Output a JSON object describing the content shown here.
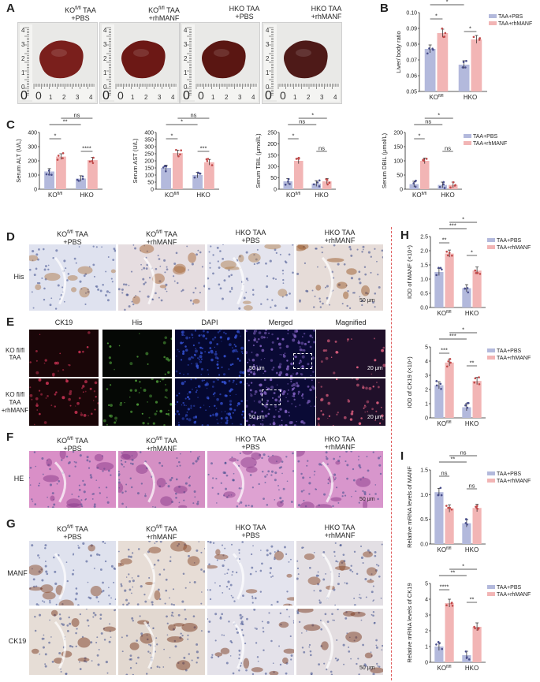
{
  "panels": {
    "A": "A",
    "B": "B",
    "C": "C",
    "D": "D",
    "E": "E",
    "F": "F",
    "G": "G",
    "H": "H",
    "I": "I"
  },
  "groups": [
    {
      "line1_pre": "KO",
      "line1_sup": "fl/fl",
      "line1_post": " TAA",
      "line2": "+PBS"
    },
    {
      "line1_pre": "KO",
      "line1_sup": "fl/fl",
      "line1_post": " TAA",
      "line2": "+rhMANF"
    },
    {
      "line1_pre": "HKO TAA",
      "line1_sup": "",
      "line1_post": "",
      "line2": "+PBS"
    },
    {
      "line1_pre": "HKO TAA",
      "line1_sup": "",
      "line1_post": "",
      "line2": "+rhMANF"
    }
  ],
  "panelA_groups": [
    {
      "line1_pre": "KO",
      "line1_sup": "fl/fl",
      "line1_post": " TAA",
      "line2": "+PBS"
    },
    {
      "line1_pre": "KO",
      "line1_sup": "fl/fl",
      "line1_post": " TAA",
      "line2": "+rhMANF"
    },
    {
      "line1_pre": "HKO TAA",
      "line1_sup": "",
      "line1_post": "",
      "line2": "+PBS"
    },
    {
      "line1_pre": "HKO TAA",
      "line1_sup": "",
      "line1_post": "",
      "line2": "+rhMANF"
    }
  ],
  "ruler_numbers": [
    "0",
    "1",
    "2",
    "3",
    "4"
  ],
  "ruler_v_numbers": [
    "4",
    "3",
    "2",
    "1",
    "0"
  ],
  "panelD": {
    "row_label": "His",
    "scale": "50 μm"
  },
  "panelE": {
    "col_labels": [
      "CK19",
      "His",
      "DAPI",
      "Merged",
      "Magnified"
    ],
    "row1_label": "KO fl/fl TAA",
    "row2_label_a": "KO fl/fl TAA",
    "row2_label_b": "+rhMANF",
    "scale_merged": "50 μm",
    "scale_magnified": "20 μm"
  },
  "panelF": {
    "row_label": "HE",
    "scale": "50 μm"
  },
  "panelG": {
    "row_labels": [
      "MANF",
      "CK19"
    ],
    "scale": "50 μm"
  },
  "legend": {
    "pbs": "TAA+PBS",
    "rh": "TAA+rhMANF"
  },
  "colors": {
    "pbs": "#b3b9dc",
    "rh": "#f2b5b5",
    "pbs_dot": "#4a4f8c",
    "rh_dot": "#c24a4a",
    "divider": "#e06060"
  },
  "chart_data": [
    {
      "id": "B",
      "type": "bar",
      "ylabel": "Liver/ body ratio",
      "categories": [
        "KO fl/fl",
        "HKO"
      ],
      "ylim": [
        0.05,
        0.1
      ],
      "yticks": [
        "0.05",
        "0.06",
        "0.07",
        "0.08",
        "0.09",
        "0.10"
      ],
      "series": [
        {
          "name": "TAA+PBS",
          "values": [
            0.077,
            0.067
          ]
        },
        {
          "name": "TAA+rhMANF",
          "values": [
            0.087,
            0.083
          ]
        }
      ],
      "sig": [
        "*",
        "*",
        "ns",
        "*"
      ]
    },
    {
      "id": "C1",
      "type": "bar",
      "ylabel": "Serum ALT (U/L)",
      "categories": [
        "KO fl/fl",
        "HKO"
      ],
      "ylim": [
        0,
        400
      ],
      "yticks": [
        "0",
        "100",
        "200",
        "300",
        "400"
      ],
      "series": [
        {
          "name": "TAA+PBS",
          "values": [
            125,
            75
          ]
        },
        {
          "name": "TAA+rhMANF",
          "values": [
            230,
            205
          ]
        }
      ],
      "sig": [
        "*",
        "**",
        "ns",
        "****"
      ]
    },
    {
      "id": "C2",
      "type": "bar",
      "ylabel": "Serum AST (U/L)",
      "categories": [
        "KO fl/fl",
        "HKO"
      ],
      "ylim": [
        0,
        400
      ],
      "yticks": [
        "0",
        "50",
        "100",
        "150",
        "200",
        "250",
        "300",
        "350",
        "400"
      ],
      "series": [
        {
          "name": "TAA+PBS",
          "values": [
            150,
            100
          ]
        },
        {
          "name": "TAA+rhMANF",
          "values": [
            255,
            190
          ]
        }
      ],
      "sig": [
        "*",
        "*",
        "ns",
        "***"
      ]
    },
    {
      "id": "C3",
      "type": "bar",
      "ylabel": "Serum TBIL (μmol/L)",
      "categories": [
        "KO fl/fl",
        "HKO"
      ],
      "ylim": [
        0,
        250
      ],
      "yticks": [
        "0",
        "50",
        "100",
        "150",
        "200",
        "250"
      ],
      "series": [
        {
          "name": "TAA+PBS",
          "values": [
            35,
            25
          ]
        },
        {
          "name": "TAA+rhMANF",
          "values": [
            125,
            35
          ]
        }
      ],
      "sig": [
        "*",
        "ns",
        "*",
        "ns"
      ]
    },
    {
      "id": "C4",
      "type": "bar",
      "ylabel": "Serum DBIL (μmol/L)",
      "categories": [
        "KO fl/fl",
        "HKO"
      ],
      "ylim": [
        0,
        200
      ],
      "yticks": [
        "0",
        "50",
        "100",
        "150",
        "200"
      ],
      "series": [
        {
          "name": "TAA+PBS",
          "values": [
            18,
            15
          ]
        },
        {
          "name": "TAA+rhMANF",
          "values": [
            100,
            15
          ]
        }
      ],
      "sig": [
        "*",
        "ns",
        "*",
        "ns"
      ]
    },
    {
      "id": "H1",
      "type": "bar",
      "ylabel": "IOD of MANF (×10⁴)",
      "categories": [
        "KO fl/fl",
        "HKO"
      ],
      "ylim": [
        0,
        2.5
      ],
      "yticks": [
        "0.0",
        "0.5",
        "1.0",
        "1.5",
        "2.0",
        "2.5"
      ],
      "series": [
        {
          "name": "TAA+PBS",
          "values": [
            1.25,
            0.68
          ]
        },
        {
          "name": "TAA+rhMANF",
          "values": [
            1.9,
            1.3
          ]
        }
      ],
      "sig": [
        "**",
        "***",
        "*",
        "*"
      ]
    },
    {
      "id": "H2",
      "type": "bar",
      "ylabel": "IOD of CK19 (×10⁴)",
      "categories": [
        "KO fl/fl",
        "HKO"
      ],
      "ylim": [
        0,
        5
      ],
      "yticks": [
        "0",
        "1",
        "2",
        "3",
        "4",
        "5"
      ],
      "series": [
        {
          "name": "TAA+PBS",
          "values": [
            2.3,
            0.75
          ]
        },
        {
          "name": "TAA+rhMANF",
          "values": [
            3.9,
            2.6
          ]
        }
      ],
      "sig": [
        "***",
        "***",
        "*",
        "**"
      ]
    },
    {
      "id": "I1",
      "type": "bar",
      "ylabel": "Relative mRNA levels of MANF",
      "categories": [
        "KO fl/fl",
        "HKO"
      ],
      "ylim": [
        0,
        1.5
      ],
      "yticks": [
        "0.0",
        "0.5",
        "1.0",
        "1.5"
      ],
      "series": [
        {
          "name": "TAA+PBS",
          "values": [
            1.05,
            0.42
          ]
        },
        {
          "name": "TAA+rhMANF",
          "values": [
            0.72,
            0.73
          ]
        }
      ],
      "sig": [
        "ns",
        "**",
        "ns",
        "ns"
      ]
    },
    {
      "id": "I2",
      "type": "bar",
      "ylabel": "Relative mRNA levels of CK19",
      "categories": [
        "KO fl/fl",
        "HKO"
      ],
      "ylim": [
        0,
        5
      ],
      "yticks": [
        "0",
        "1",
        "2",
        "3",
        "4",
        "5"
      ],
      "series": [
        {
          "name": "TAA+PBS",
          "values": [
            1.0,
            0.45
          ]
        },
        {
          "name": "TAA+rhMANF",
          "values": [
            3.75,
            2.25
          ]
        }
      ],
      "sig": [
        "****",
        "**",
        "*",
        "**"
      ]
    }
  ]
}
